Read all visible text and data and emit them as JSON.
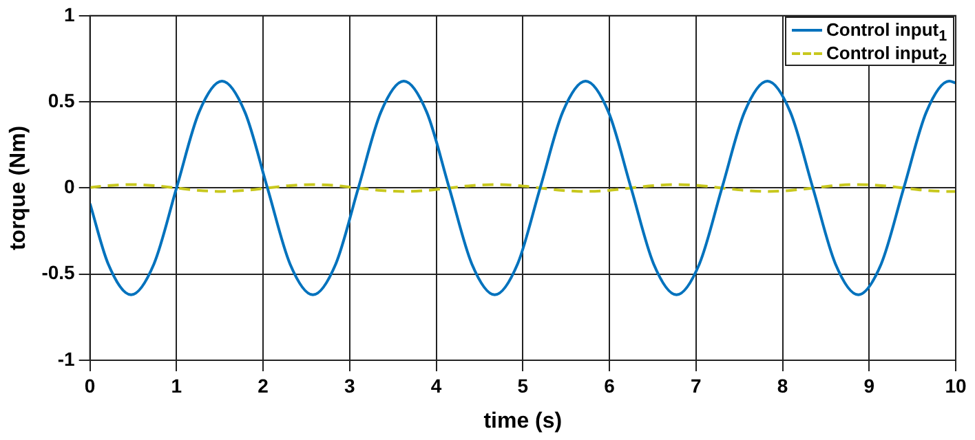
{
  "chart_data": {
    "type": "line",
    "xlabel": "time (s)",
    "ylabel": "torque (Nm)",
    "x": [
      0,
      0.21,
      0.475,
      0.74,
      1.0,
      1.26,
      1.525,
      1.79,
      2.05,
      2.31,
      2.575,
      2.84,
      3.1,
      3.36,
      3.625,
      3.89,
      4.15,
      4.41,
      4.675,
      4.94,
      5.2,
      5.46,
      5.725,
      5.99,
      6.25,
      6.51,
      6.775,
      7.04,
      7.3,
      7.56,
      7.825,
      8.09,
      8.35,
      8.61,
      8.875,
      9.14,
      9.4,
      9.66,
      9.925,
      10
    ],
    "series": [
      {
        "name": "Control input$_{1}$",
        "color": "#0072bd",
        "line_style": "solid",
        "values": [
          -0.09,
          -0.44,
          -0.62,
          -0.44,
          0,
          0.44,
          0.62,
          0.44,
          0,
          -0.44,
          -0.62,
          -0.44,
          0,
          0.44,
          0.62,
          0.44,
          0,
          -0.44,
          -0.62,
          -0.44,
          0,
          0.44,
          0.62,
          0.44,
          0,
          -0.44,
          -0.62,
          -0.44,
          0,
          0.44,
          0.62,
          0.44,
          0,
          -0.44,
          -0.62,
          -0.44,
          0,
          0.44,
          0.62,
          0.61
        ]
      },
      {
        "name": "Control input$_{2}$",
        "color": "#c8c81e",
        "line_style": "dashed",
        "values": [
          0.003,
          0.014,
          0.02,
          0.014,
          0,
          -0.014,
          -0.02,
          -0.014,
          0,
          0.014,
          0.02,
          0.014,
          0,
          -0.014,
          -0.02,
          -0.014,
          0,
          0.014,
          0.02,
          0.014,
          0,
          -0.014,
          -0.02,
          -0.014,
          0,
          0.014,
          0.02,
          0.014,
          0,
          -0.014,
          -0.02,
          -0.014,
          0,
          0.014,
          0.02,
          0.014,
          0,
          -0.014,
          -0.02,
          -0.02
        ]
      }
    ],
    "xlim": [
      0,
      10
    ],
    "xticks": [
      0,
      1,
      2,
      3,
      4,
      5,
      6,
      7,
      8,
      9,
      10
    ],
    "ylim": [
      -1,
      1
    ],
    "yticks": [
      -1,
      -0.5,
      0,
      0.5,
      1
    ],
    "grid": true,
    "legend": "top right",
    "marker": "none"
  }
}
